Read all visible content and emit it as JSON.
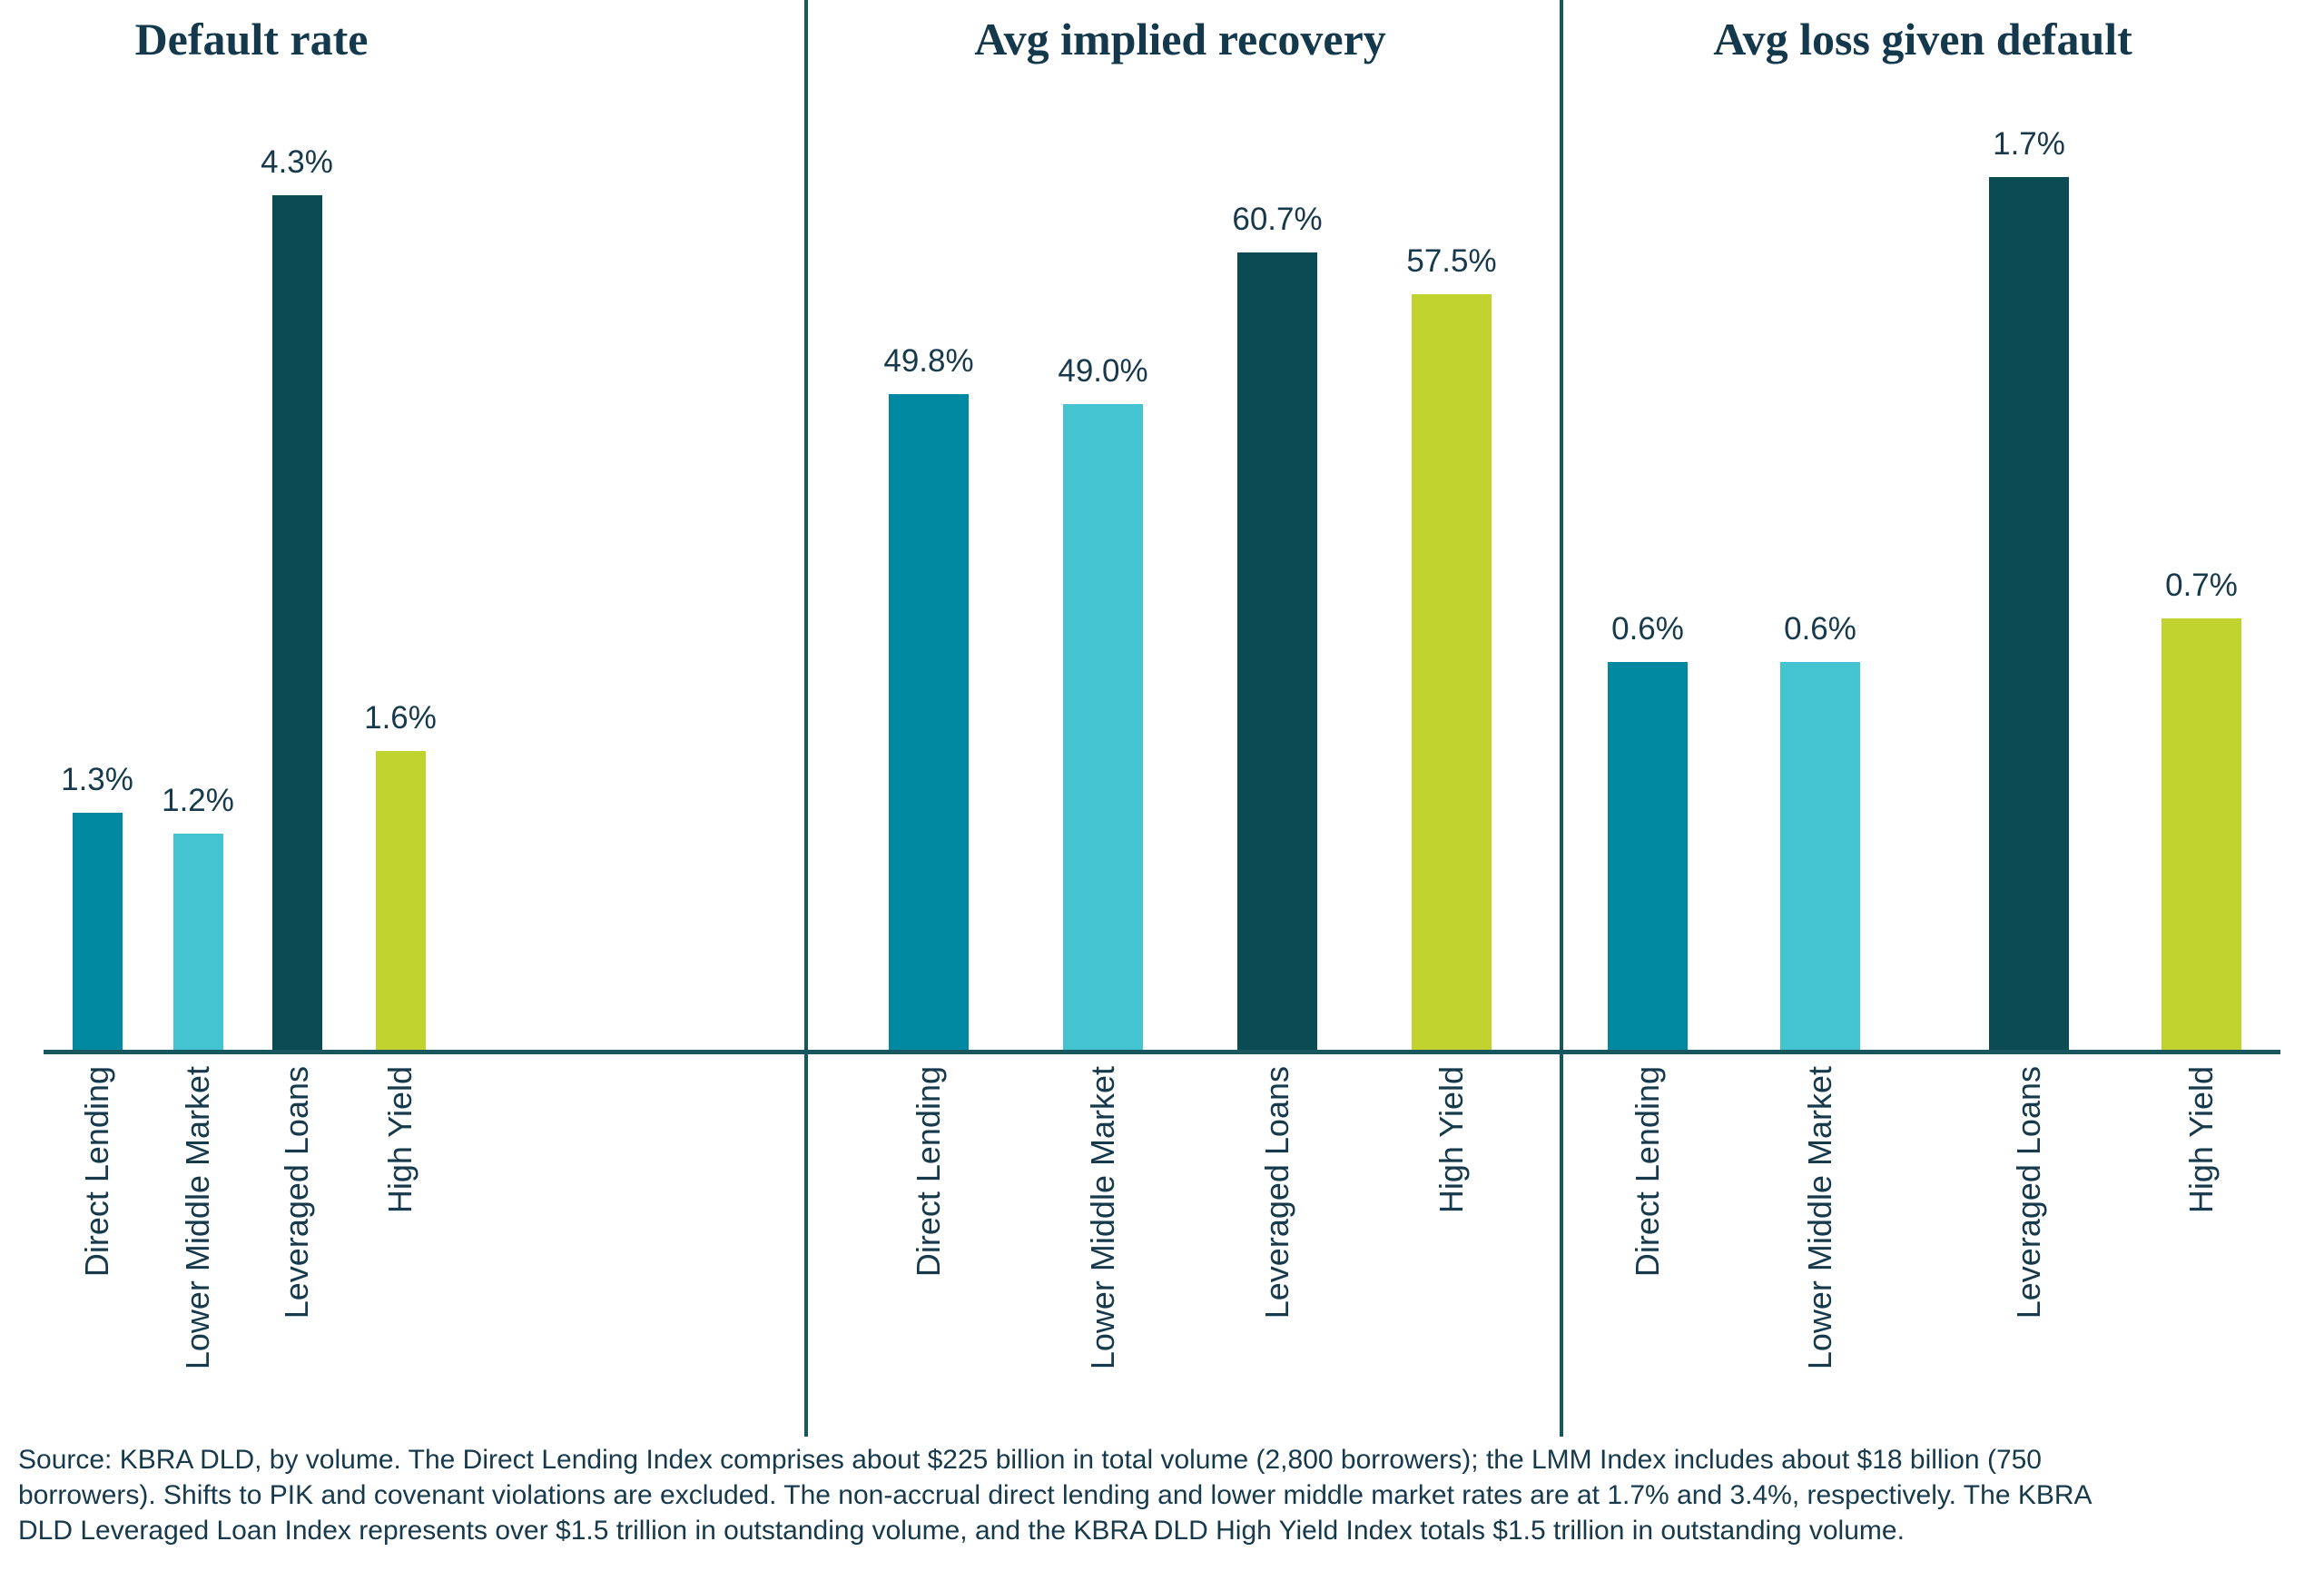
{
  "figure_title": "",
  "colors": {
    "bar_direct_lending": "#0089A0",
    "bar_lower_middle_market": "#44C3D1",
    "bar_leveraged_loans": "#0B4B54",
    "bar_high_yield": "#C1D32F",
    "title_text": "#14384C",
    "label_text": "#16394C",
    "axis_line": "#185660",
    "background": "#FFFFFF"
  },
  "chart_data": [
    {
      "type": "bar",
      "title": "Default rate",
      "categories": [
        "Direct Lending",
        "Lower Middle Market",
        "Leveraged Loans",
        "High Yield"
      ],
      "values": [
        1.3,
        1.2,
        4.3,
        1.6
      ],
      "value_labels": [
        "1.3%",
        "1.2%",
        "4.3%",
        "1.6%"
      ],
      "value_unit": "%",
      "ylim": [
        0.15,
        4.75
      ],
      "grid": false,
      "legend": "none",
      "value_labels_position": "above bars",
      "category_label_rotation": -90
    },
    {
      "type": "bar",
      "title": "Avg implied recovery",
      "categories": [
        "Direct Lending",
        "Lower Middle Market",
        "Leveraged Loans",
        "High Yield"
      ],
      "values": [
        49.8,
        49.0,
        60.7,
        57.5
      ],
      "value_labels": [
        "49.8%",
        "49.0%",
        "60.7%",
        "57.5%"
      ],
      "value_unit": "%",
      "ylim": [
        -0.9,
        72.3
      ],
      "grid": false,
      "legend": "none",
      "value_labels_position": "above bars",
      "category_label_rotation": -90
    },
    {
      "type": "bar",
      "title": "Avg loss given default",
      "categories": [
        "Direct Lending",
        "Lower Middle Market",
        "Leveraged Loans",
        "High Yield"
      ],
      "values": [
        0.6,
        0.6,
        1.7,
        0.7
      ],
      "value_labels": [
        "0.6%",
        "0.6%",
        "1.7%",
        "0.7%"
      ],
      "value_unit": "%",
      "ylim": [
        -0.28,
        1.87
      ],
      "grid": false,
      "legend": "none",
      "value_labels_position": "above bars",
      "category_label_rotation": -90
    }
  ],
  "source_note": "Source: KBRA DLD, by volume. The Direct Lending Index comprises about $225 billion in total volume (2,800 borrowers); the LMM Index includes about $18 billion (750\nborrowers). Shifts to PIK and covenant violations are excluded. The non-accrual direct lending and lower middle market rates are at 1.7% and 3.4%, respectively. The KBRA\nDLD Leveraged Loan Index represents over $1.5 trillion in outstanding volume, and the KBRA DLD High Yield Index totals $1.5 trillion in outstanding volume."
}
